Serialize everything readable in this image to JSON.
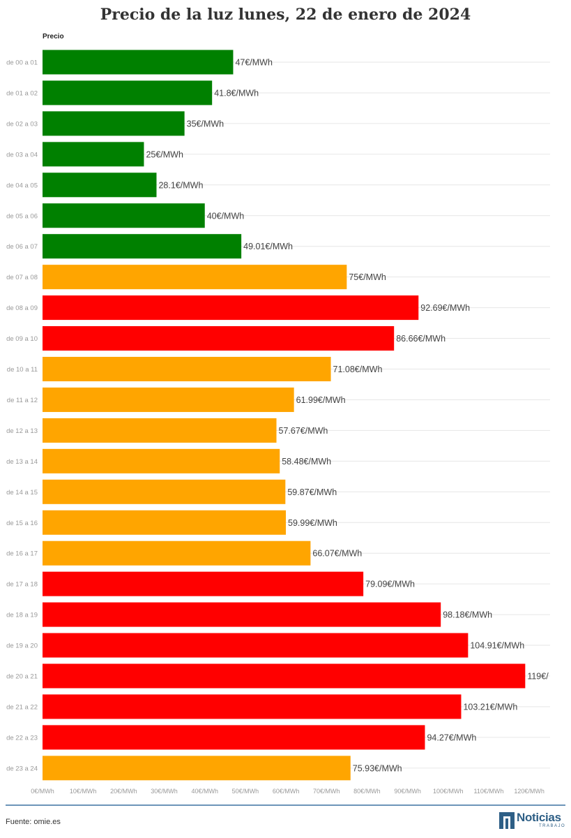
{
  "chart_data": {
    "type": "bar",
    "orientation": "horizontal",
    "title": "Precio de la luz lunes, 22 de enero de 2024",
    "series_name": "Precio",
    "categories": [
      "de 00 a 01",
      "de 01 a 02",
      "de 02 a 03",
      "de 03 a 04",
      "de 04 a 05",
      "de 05 a 06",
      "de 06 a 07",
      "de 07 a 08",
      "de 08 a 09",
      "de 09 a 10",
      "de 10 a 11",
      "de 11 a 12",
      "de 12 a 13",
      "de 13 a 14",
      "de 14 a 15",
      "de 15 a 16",
      "de 16 a 17",
      "de 17 a 18",
      "de 18 a 19",
      "de 19 a 20",
      "de 20 a 21",
      "de 21 a 22",
      "de 22 a 23",
      "de 23 a 24"
    ],
    "values": [
      47,
      41.8,
      35,
      25,
      28.1,
      40,
      49.01,
      75,
      92.69,
      86.66,
      71.08,
      61.99,
      57.67,
      58.48,
      59.87,
      59.99,
      66.07,
      79.09,
      98.18,
      104.91,
      119,
      103.21,
      94.27,
      75.93
    ],
    "data_labels": [
      "47€/MWh",
      "41.8€/MWh",
      "35€/MWh",
      "25€/MWh",
      "28.1€/MWh",
      "40€/MWh",
      "49.01€/MWh",
      "75€/MWh",
      "92.69€/MWh",
      "86.66€/MWh",
      "71.08€/MWh",
      "61.99€/MWh",
      "57.67€/MWh",
      "58.48€/MWh",
      "59.87€/MWh",
      "59.99€/MWh",
      "66.07€/MWh",
      "79.09€/MWh",
      "98.18€/MWh",
      "104.91€/MWh",
      "119€/",
      "103.21€/MWh",
      "94.27€/MWh",
      "75.93€/MWh"
    ],
    "bar_colors": [
      "#008000",
      "#008000",
      "#008000",
      "#008000",
      "#008000",
      "#008000",
      "#008000",
      "#ffa500",
      "#ff0000",
      "#ff0000",
      "#ffa500",
      "#ffa500",
      "#ffa500",
      "#ffa500",
      "#ffa500",
      "#ffa500",
      "#ffa500",
      "#ff0000",
      "#ff0000",
      "#ff0000",
      "#ff0000",
      "#ff0000",
      "#ff0000",
      "#ffa500"
    ],
    "x_ticks": [
      0,
      10,
      20,
      30,
      40,
      50,
      60,
      70,
      80,
      90,
      100,
      110,
      120
    ],
    "x_tick_labels": [
      "0€/MWh",
      "10€/MWh",
      "20€/MWh",
      "30€/MWh",
      "40€/MWh",
      "50€/MWh",
      "60€/MWh",
      "70€/MWh",
      "80€/MWh",
      "90€/MWh",
      "100€/MWh",
      "110€/MWh",
      "120€/MWh"
    ],
    "xlim": [
      0,
      124
    ],
    "grid": true
  },
  "footer": {
    "source": "Fuente: omie.es",
    "logo_text": "Noticias",
    "logo_sub": "TRABAJO"
  }
}
